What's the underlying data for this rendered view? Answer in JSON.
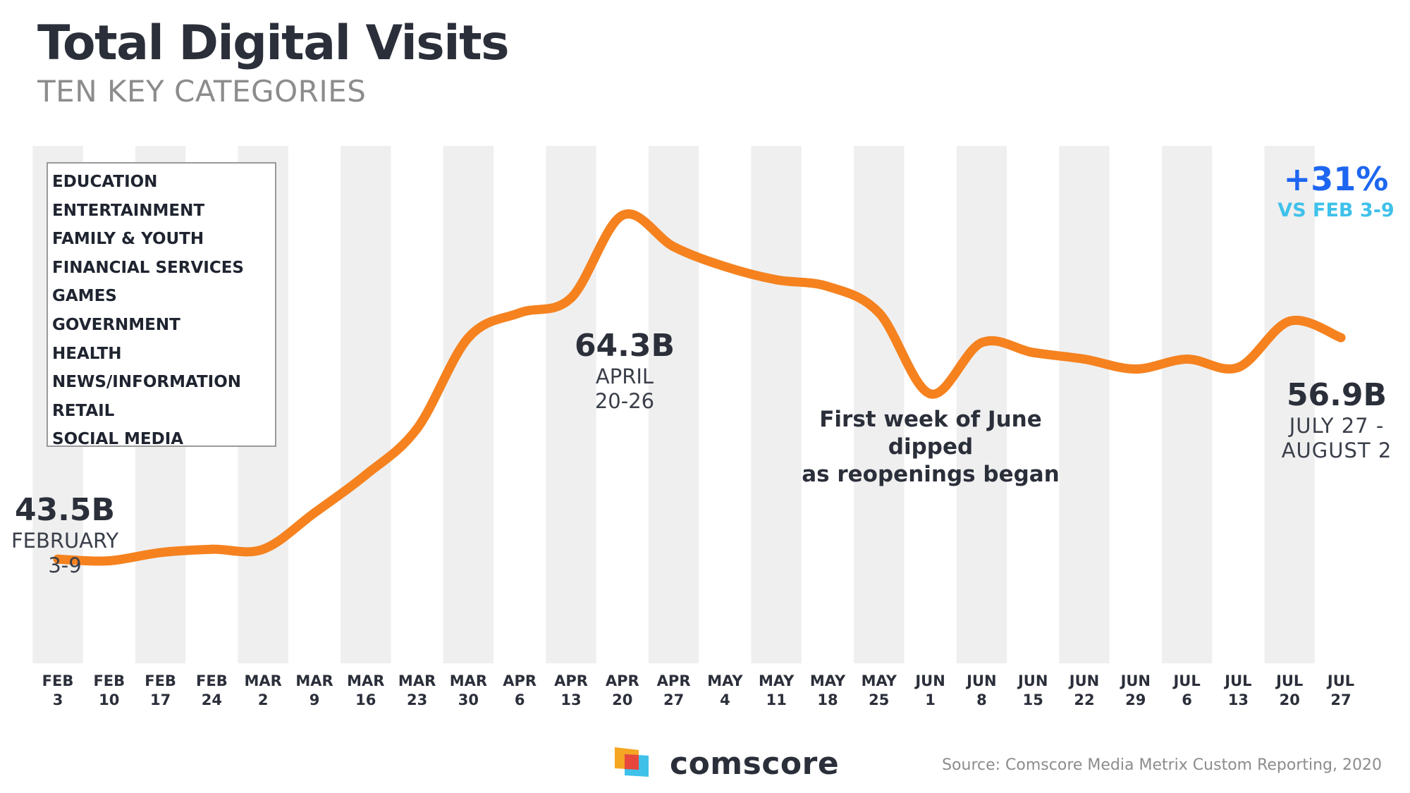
{
  "chart_data": {
    "type": "line",
    "title": "Total Digital Visits",
    "subtitle": "TEN KEY CATEGORIES",
    "units": "billions of visits",
    "x": [
      {
        "month": "FEB",
        "day": "3"
      },
      {
        "month": "FEB",
        "day": "10"
      },
      {
        "month": "FEB",
        "day": "17"
      },
      {
        "month": "FEB",
        "day": "24"
      },
      {
        "month": "MAR",
        "day": "2"
      },
      {
        "month": "MAR",
        "day": "9"
      },
      {
        "month": "MAR",
        "day": "16"
      },
      {
        "month": "MAR",
        "day": "23"
      },
      {
        "month": "MAR",
        "day": "30"
      },
      {
        "month": "APR",
        "day": "6"
      },
      {
        "month": "APR",
        "day": "13"
      },
      {
        "month": "APR",
        "day": "20"
      },
      {
        "month": "APR",
        "day": "27"
      },
      {
        "month": "MAY",
        "day": "4"
      },
      {
        "month": "MAY",
        "day": "11"
      },
      {
        "month": "MAY",
        "day": "18"
      },
      {
        "month": "MAY",
        "day": "25"
      },
      {
        "month": "JUN",
        "day": "1"
      },
      {
        "month": "JUN",
        "day": "8"
      },
      {
        "month": "JUN",
        "day": "15"
      },
      {
        "month": "JUN",
        "day": "22"
      },
      {
        "month": "JUN",
        "day": "29"
      },
      {
        "month": "JUL",
        "day": "6"
      },
      {
        "month": "JUL",
        "day": "13"
      },
      {
        "month": "JUL",
        "day": "20"
      },
      {
        "month": "JUL",
        "day": "27"
      }
    ],
    "series": [
      {
        "name": "Total Digital Visits",
        "color": "#f5821f",
        "values": [
          43.5,
          43.4,
          43.9,
          44.1,
          44.1,
          46.3,
          48.6,
          51.4,
          56.9,
          58.4,
          59.3,
          64.3,
          62.4,
          61.2,
          60.4,
          60.0,
          58.4,
          53.5,
          56.6,
          56.0,
          55.6,
          55.0,
          55.6,
          55.1,
          57.9,
          56.9
        ]
      }
    ],
    "ylim": [
      37.2,
      68.5
    ],
    "grid": "alternating vertical bands",
    "legend": {
      "placement": "top-left",
      "items": [
        "EDUCATION",
        "ENTERTAINMENT",
        "FAMILY & YOUTH",
        "FINANCIAL SERVICES",
        "GAMES",
        "GOVERNMENT",
        "HEALTH",
        "NEWS/INFORMATION",
        "RETAIL",
        "SOCIAL MEDIA"
      ]
    },
    "annotations": {
      "start": {
        "value": "43.5B",
        "line1": "FEBRUARY",
        "line2": "3-9"
      },
      "peak": {
        "value": "64.3B",
        "line1": "APRIL",
        "line2": "20-26"
      },
      "end": {
        "value": "56.9B",
        "line1": "JULY 27 -",
        "line2": "AUGUST 2"
      },
      "note": {
        "line1": "First week of June dipped",
        "line2": "as reopenings began"
      },
      "change": {
        "value": "+31%",
        "label": "VS FEB 3-9"
      }
    }
  },
  "colors": {
    "line": "#f5821f",
    "band": "#efefef",
    "title": "#2b2f3a",
    "subtitle": "#8c8c8c",
    "pct": "#1e66f0",
    "pct_label": "#3fc1ea"
  },
  "footer": {
    "brand": "comscore",
    "logo_icon": "comscore-logo-icon",
    "source": "Source: Comscore Media Metrix Custom Reporting, 2020"
  }
}
